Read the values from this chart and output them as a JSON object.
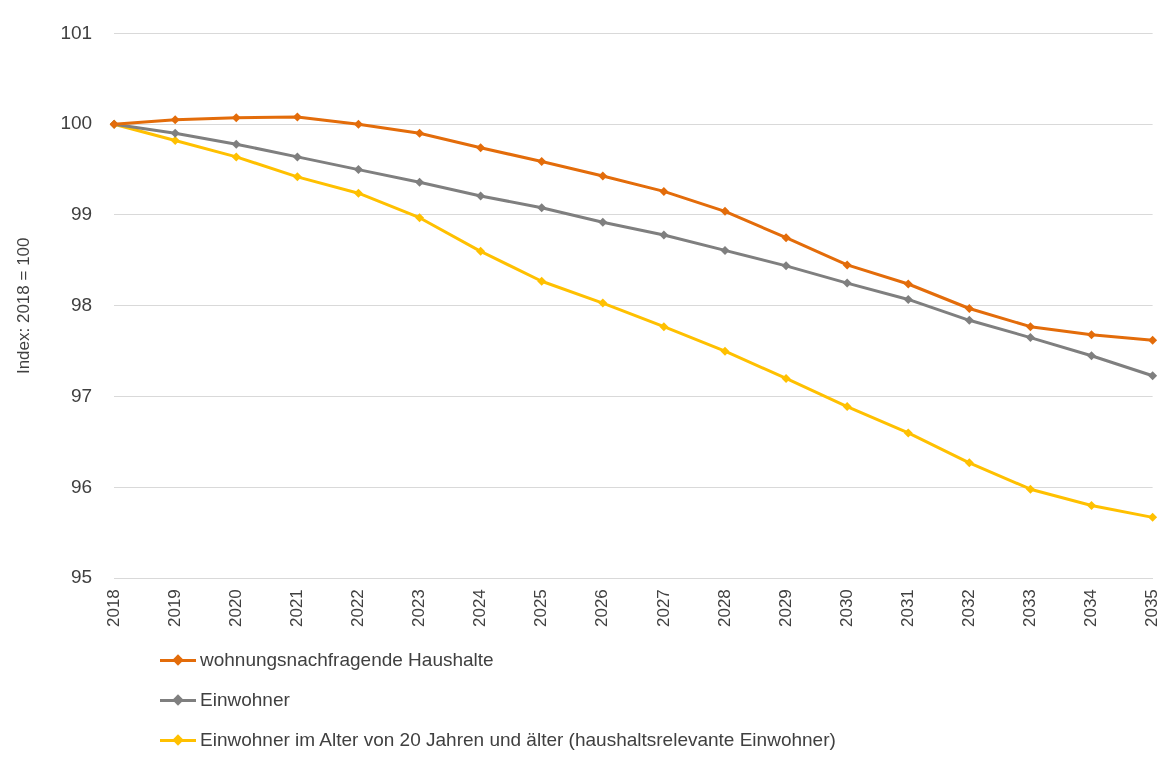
{
  "chart_data": {
    "type": "line",
    "ylabel": "Index: 2018 = 100",
    "categories": [
      "2018",
      "2019",
      "2020",
      "2021",
      "2022",
      "2023",
      "2024",
      "2025",
      "2026",
      "2027",
      "2028",
      "2029",
      "2030",
      "2031",
      "2032",
      "2033",
      "2034",
      "2035"
    ],
    "series": [
      {
        "name": "wohnungsnachfragende Haushalte",
        "color": "#e36c0a",
        "values": [
          100,
          100.05,
          100.07,
          100.08,
          100.0,
          99.9,
          99.74,
          99.59,
          99.43,
          99.26,
          99.04,
          98.75,
          98.45,
          98.24,
          97.97,
          97.77,
          97.68,
          97.62
        ]
      },
      {
        "name": "Einwohner",
        "color": "#7f7f7f",
        "values": [
          100,
          99.9,
          99.78,
          99.64,
          99.5,
          99.36,
          99.21,
          99.08,
          98.92,
          98.78,
          98.61,
          98.44,
          98.25,
          98.07,
          97.84,
          97.65,
          97.45,
          97.23
        ]
      },
      {
        "name": "Einwohner im Alter von 20 Jahren und älter (haushaltsrelevante Einwohner)",
        "color": "#ffc000",
        "values": [
          100,
          99.82,
          99.64,
          99.42,
          99.24,
          98.97,
          98.6,
          98.27,
          98.03,
          97.77,
          97.5,
          97.2,
          96.89,
          96.6,
          96.27,
          95.98,
          95.8,
          95.67
        ]
      }
    ],
    "ylim": [
      95,
      101
    ],
    "yticks": [
      95,
      96,
      97,
      98,
      99,
      100,
      101
    ],
    "grid": "y",
    "legend": "bottom",
    "marker": "diamond",
    "line_style": "solid"
  }
}
